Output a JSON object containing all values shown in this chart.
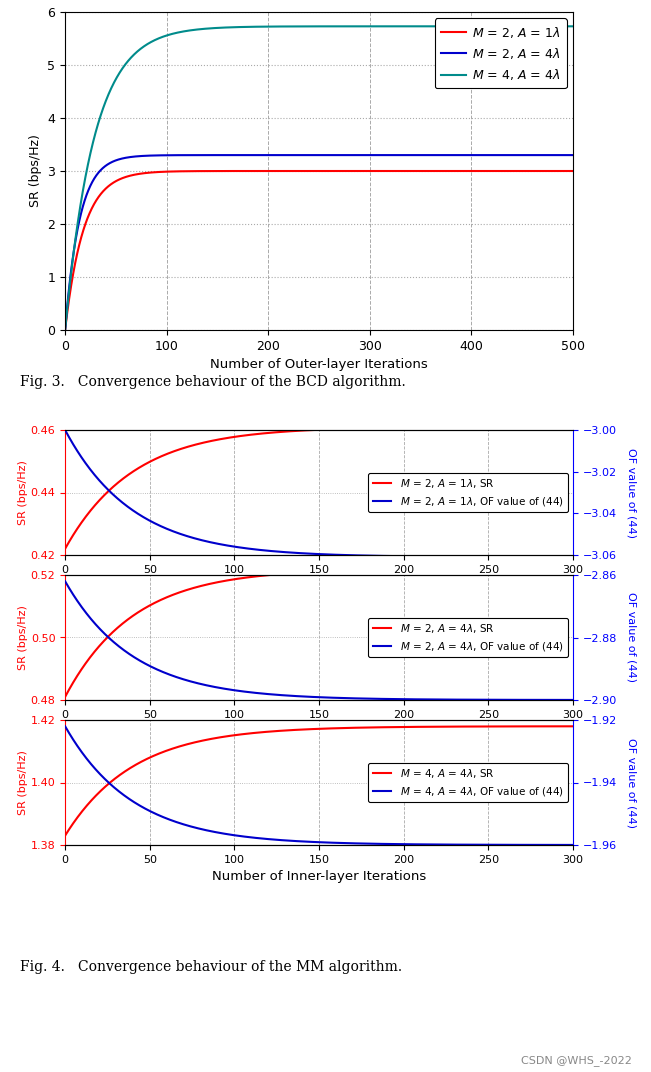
{
  "fig3": {
    "title": "Fig. 3.   Convergence behaviour of the BCD algorithm.",
    "xlabel": "Number of Outer-layer Iterations",
    "ylabel": "SR (bps/Hz)",
    "xlim": [
      0,
      500
    ],
    "ylim": [
      0,
      6
    ],
    "yticks": [
      0,
      1,
      2,
      3,
      4,
      5,
      6
    ],
    "xticks": [
      0,
      100,
      200,
      300,
      400,
      500
    ],
    "curves": [
      {
        "label": "$M$ = 2, $A$ = 1$\\lambda$",
        "color": "#FF0000",
        "final": 3.0,
        "initial": 0.0,
        "speed": 0.055
      },
      {
        "label": "$M$ = 2, $A$ = 4$\\lambda$",
        "color": "#0000CC",
        "final": 3.3,
        "initial": 0.0,
        "speed": 0.07
      },
      {
        "label": "$M$ = 4, $A$ = 4$\\lambda$",
        "color": "#008B8B",
        "final": 5.73,
        "initial": 0.0,
        "speed": 0.035
      }
    ]
  },
  "fig4": {
    "title": "Fig. 4.   Convergence behaviour of the MM algorithm.",
    "xlabel": "Number of Inner-layer Iterations",
    "subplots": [
      {
        "ylabel_left": "SR (bps/Hz)",
        "ylabel_right": "OF value of (44)",
        "xlim": [
          0,
          300
        ],
        "xticks": [
          0,
          50,
          100,
          150,
          200,
          250,
          300
        ],
        "ylim_left": [
          0.42,
          0.46
        ],
        "ylim_right": [
          -3.06,
          -3.0
        ],
        "yticks_left": [
          0.42,
          0.44,
          0.46
        ],
        "yticks_right": [
          -3.06,
          -3.04,
          -3.02,
          -3.0
        ],
        "legend": [
          "$M$ = 2, $A$ = 1$\\lambda$, SR",
          "$M$ = 2, $A$ = 1$\\lambda$, OF value of (44)"
        ],
        "sr_curve": {
          "color": "#FF0000",
          "initial": 0.422,
          "final": 0.461,
          "speed": 0.025
        },
        "of_curve": {
          "color": "#0000CC",
          "initial": -3.0,
          "final": -3.061,
          "speed": 0.025
        }
      },
      {
        "ylabel_left": "SR (bps/Hz)",
        "ylabel_right": "OF value of (44)",
        "xlim": [
          0,
          300
        ],
        "xticks": [
          0,
          50,
          100,
          150,
          200,
          250,
          300
        ],
        "ylim_left": [
          0.48,
          0.52
        ],
        "ylim_right": [
          -2.9,
          -2.86
        ],
        "yticks_left": [
          0.48,
          0.5,
          0.52
        ],
        "yticks_right": [
          -2.9,
          -2.88,
          -2.86
        ],
        "legend": [
          "$M$ = 2, $A$ = 4$\\lambda$, SR",
          "$M$ = 2, $A$ = 4$\\lambda$, OF value of (44)"
        ],
        "sr_curve": {
          "color": "#FF0000",
          "initial": 0.481,
          "final": 0.522,
          "speed": 0.025
        },
        "of_curve": {
          "color": "#0000CC",
          "initial": -2.862,
          "final": -2.9,
          "speed": 0.025
        }
      },
      {
        "ylabel_left": "SR (bps/Hz)",
        "ylabel_right": "OF value of (44)",
        "xlim": [
          0,
          300
        ],
        "xticks": [
          0,
          50,
          100,
          150,
          200,
          250,
          300
        ],
        "ylim_left": [
          1.38,
          1.42
        ],
        "ylim_right": [
          -1.96,
          -1.92
        ],
        "yticks_left": [
          1.38,
          1.4,
          1.42
        ],
        "yticks_right": [
          -1.96,
          -1.94,
          -1.92
        ],
        "legend": [
          "$M$ = 4, $A$ = 4$\\lambda$, SR",
          "$M$ = 4, $A$ = 4$\\lambda$, OF value of (44)"
        ],
        "sr_curve": {
          "color": "#FF0000",
          "initial": 1.383,
          "final": 1.418,
          "speed": 0.025
        },
        "of_curve": {
          "color": "#0000CC",
          "initial": -1.922,
          "final": -1.96,
          "speed": 0.025
        }
      }
    ]
  },
  "watermark": "CSDN @WHS_-2022",
  "background_color": "#FFFFFF",
  "grid_minor_color": "#CCCCCC",
  "grid_major_color": "#AAAAAA"
}
